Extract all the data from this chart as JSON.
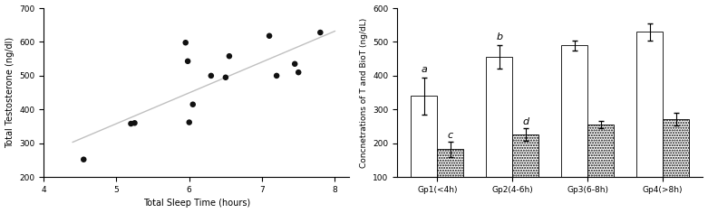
{
  "scatter": {
    "x": [
      4.55,
      5.2,
      5.25,
      5.95,
      5.98,
      6.0,
      6.05,
      6.3,
      6.5,
      6.55,
      7.1,
      7.2,
      7.45,
      7.5,
      7.8
    ],
    "y": [
      252,
      358,
      360,
      598,
      543,
      362,
      415,
      500,
      495,
      558,
      618,
      500,
      535,
      510,
      628
    ],
    "xlim": [
      4.0,
      8.2
    ],
    "ylim": [
      200,
      700
    ],
    "xticks": [
      4,
      5,
      6,
      7,
      8
    ],
    "yticks": [
      200,
      300,
      400,
      500,
      600,
      700
    ],
    "xlabel": "Total Sleep Time (hours)",
    "ylabel": "Total Testosterone (ng/dl)",
    "line_color": "#c0c0c0",
    "dot_color": "#111111",
    "dot_size": 22
  },
  "bar": {
    "groups": [
      "Gp1(<4h)",
      "Gp2(4-6h)",
      "Gp3(6-8h)",
      "Gp4(>8h)"
    ],
    "T_values": [
      340,
      455,
      490,
      530
    ],
    "T_errors": [
      55,
      35,
      15,
      25
    ],
    "BioT_values": [
      182,
      226,
      256,
      272
    ],
    "BioT_errors": [
      22,
      18,
      10,
      18
    ],
    "T_labels": [
      "a",
      "b",
      "",
      ""
    ],
    "BioT_labels": [
      "c",
      "d",
      "",
      ""
    ],
    "ylim": [
      100,
      600
    ],
    "yticks": [
      100,
      200,
      300,
      400,
      500,
      600
    ],
    "ylabel": "Concnetrations of T and BioT (ng/dL)",
    "bar_width": 0.35,
    "T_color": "#ffffff",
    "BioT_color": "#ffffff"
  }
}
